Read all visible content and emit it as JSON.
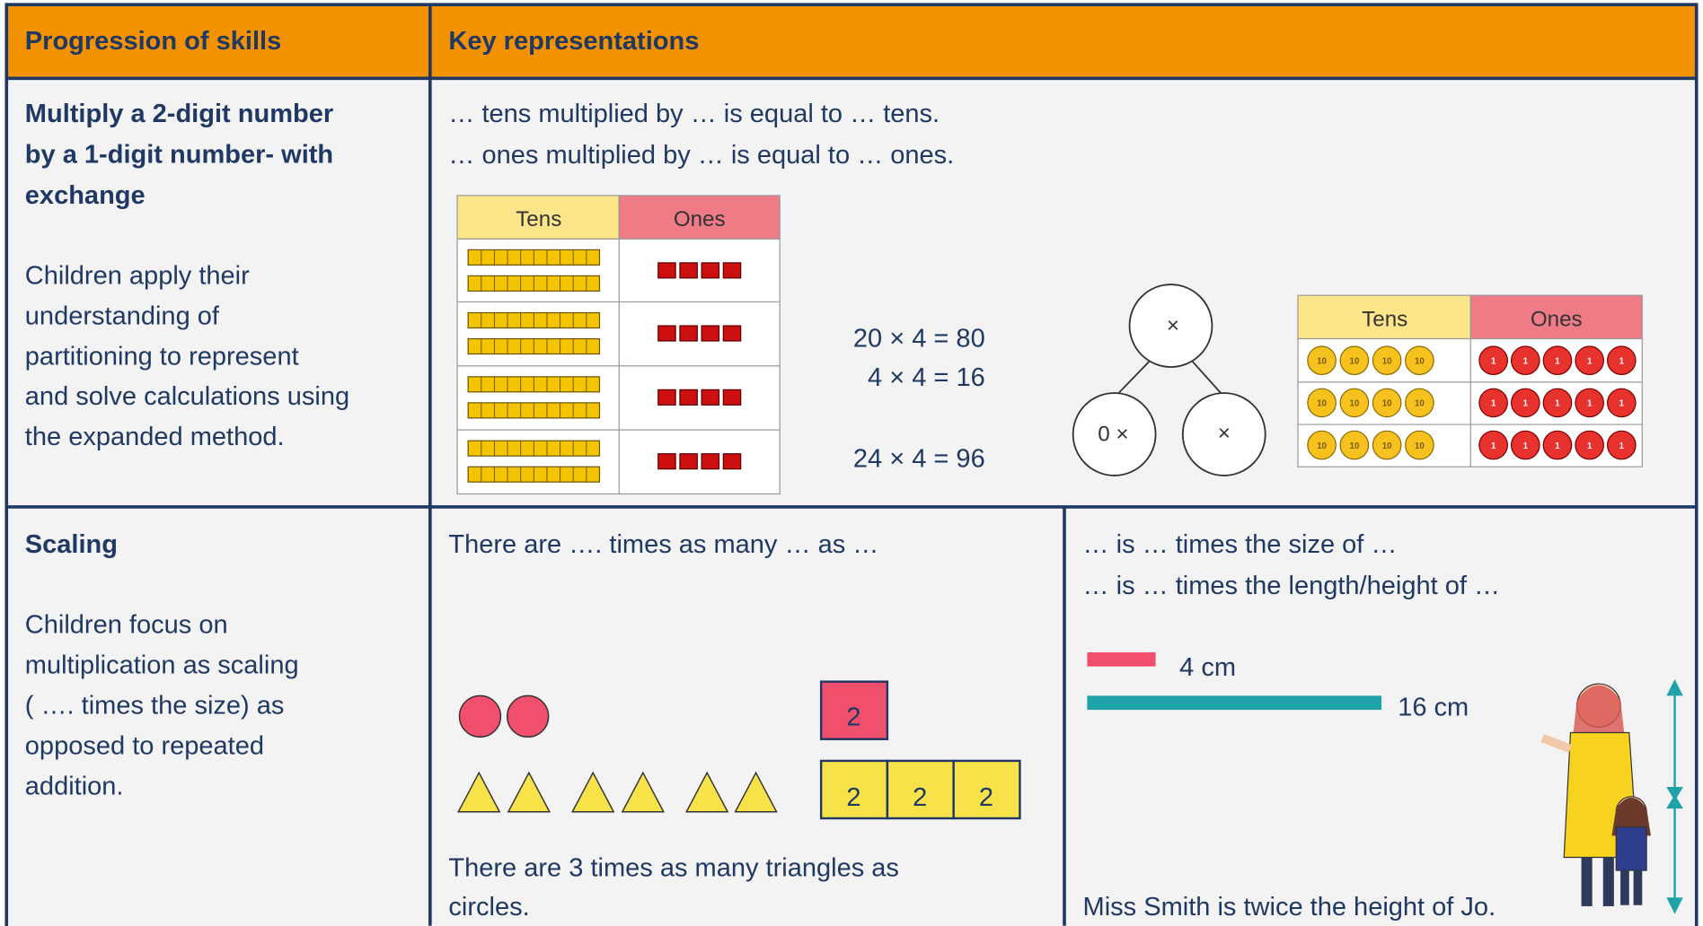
{
  "header": {
    "skills": "Progression of skills",
    "representations": "Key representations"
  },
  "rows": [
    {
      "title": [
        "Multiply a 2-digit number",
        "by a 1-digit number- with",
        "exchange"
      ],
      "description": [
        "Children apply their",
        "understanding of",
        "partitioning to represent",
        "and solve calculations using",
        "the expanded method."
      ],
      "sentences": [
        "… tens multiplied by … is equal to … tens.",
        "… ones multiplied by … is equal to … ones."
      ],
      "place_value_table": {
        "headers": [
          "Tens",
          "Ones"
        ]
      },
      "equations": [
        "20 × 4 = 80",
        "4 × 4 = 16",
        "24 × 4 = 96"
      ],
      "part_whole": [
        "×",
        "0 ×",
        "×"
      ],
      "counter_table": {
        "headers": [
          "Tens",
          "Ones"
        ],
        "tens_counter": "10",
        "ones_counter": "1"
      }
    },
    {
      "title": [
        "Scaling"
      ],
      "description": [
        "Children focus on",
        "multiplication as scaling",
        "( …. times the size) as",
        "opposed to repeated",
        "addition."
      ],
      "left": {
        "sentence": "There are …. times as many … as …",
        "square": "2",
        "bar": [
          "2",
          "2",
          "2"
        ],
        "conclusion": [
          "There are 3 times as many triangles as",
          "circles."
        ]
      },
      "right": {
        "sentences": [
          "… is … times the size of …",
          "… is … times the length/height of …"
        ],
        "short_bar": "4 cm",
        "long_bar": "16 cm",
        "conclusion": "Miss Smith is twice the height of Jo."
      }
    }
  ]
}
